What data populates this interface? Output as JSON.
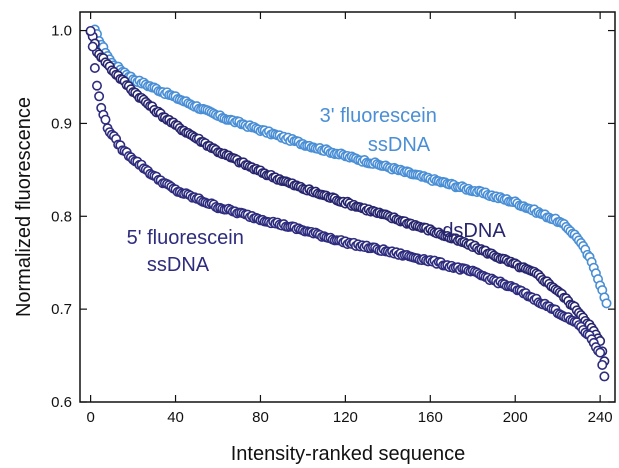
{
  "chart_data": {
    "type": "scatter",
    "title": "",
    "xlabel": "Intensity-ranked sequence",
    "ylabel": "Normalized fluorescence",
    "xlim": [
      -5,
      247
    ],
    "ylim": [
      0.6,
      1.02
    ],
    "x_ticks": [
      0,
      40,
      80,
      120,
      160,
      200,
      240
    ],
    "y_ticks": [
      0.6,
      0.7,
      0.8,
      0.9,
      1.0
    ],
    "x_tick_labels": [
      "0",
      "40",
      "80",
      "120",
      "160",
      "200",
      "240"
    ],
    "y_tick_labels": [
      "0.6",
      "0.7",
      "0.8",
      "0.9",
      "1.0"
    ],
    "grid": false,
    "marker": "open-circle",
    "series": [
      {
        "name": "3' fluorescein ssDNA",
        "label_lines": [
          "3' fluorescein",
          "ssDNA"
        ],
        "color": "#4a8fd6",
        "anchors": [
          [
            2,
            1.0
          ],
          [
            5,
            0.985
          ],
          [
            10,
            0.965
          ],
          [
            20,
            0.948
          ],
          [
            40,
            0.928
          ],
          [
            60,
            0.908
          ],
          [
            80,
            0.893
          ],
          [
            100,
            0.878
          ],
          [
            120,
            0.865
          ],
          [
            140,
            0.853
          ],
          [
            160,
            0.84
          ],
          [
            180,
            0.828
          ],
          [
            200,
            0.815
          ],
          [
            210,
            0.805
          ],
          [
            220,
            0.795
          ],
          [
            225,
            0.787
          ],
          [
            230,
            0.775
          ],
          [
            235,
            0.755
          ],
          [
            238,
            0.74
          ],
          [
            241,
            0.72
          ],
          [
            243,
            0.705
          ]
        ]
      },
      {
        "name": "dsDNA",
        "label_lines": [
          "dsDNA"
        ],
        "color": "#27256e",
        "anchors": [
          [
            0,
            1.0
          ],
          [
            3,
            0.978
          ],
          [
            10,
            0.958
          ],
          [
            20,
            0.935
          ],
          [
            30,
            0.915
          ],
          [
            40,
            0.898
          ],
          [
            60,
            0.87
          ],
          [
            80,
            0.848
          ],
          [
            100,
            0.83
          ],
          [
            120,
            0.815
          ],
          [
            140,
            0.8
          ],
          [
            160,
            0.785
          ],
          [
            180,
            0.768
          ],
          [
            200,
            0.748
          ],
          [
            210,
            0.738
          ],
          [
            220,
            0.72
          ],
          [
            230,
            0.697
          ],
          [
            235,
            0.683
          ],
          [
            240,
            0.665
          ],
          [
            242,
            0.643
          ]
        ]
      },
      {
        "name": "5' fluorescein ssDNA",
        "label_lines": [
          "5' fluorescein",
          "ssDNA"
        ],
        "color": "#2e2c7e",
        "anchors": [
          [
            0,
            1.0
          ],
          [
            1,
            0.982
          ],
          [
            2,
            0.96
          ],
          [
            3,
            0.94
          ],
          [
            5,
            0.918
          ],
          [
            8,
            0.895
          ],
          [
            15,
            0.872
          ],
          [
            20,
            0.862
          ],
          [
            30,
            0.843
          ],
          [
            40,
            0.828
          ],
          [
            60,
            0.81
          ],
          [
            80,
            0.797
          ],
          [
            100,
            0.785
          ],
          [
            120,
            0.772
          ],
          [
            140,
            0.762
          ],
          [
            160,
            0.752
          ],
          [
            180,
            0.74
          ],
          [
            200,
            0.722
          ],
          [
            210,
            0.71
          ],
          [
            220,
            0.697
          ],
          [
            230,
            0.683
          ],
          [
            236,
            0.668
          ],
          [
            240,
            0.652
          ],
          [
            242,
            0.628
          ]
        ]
      }
    ]
  }
}
